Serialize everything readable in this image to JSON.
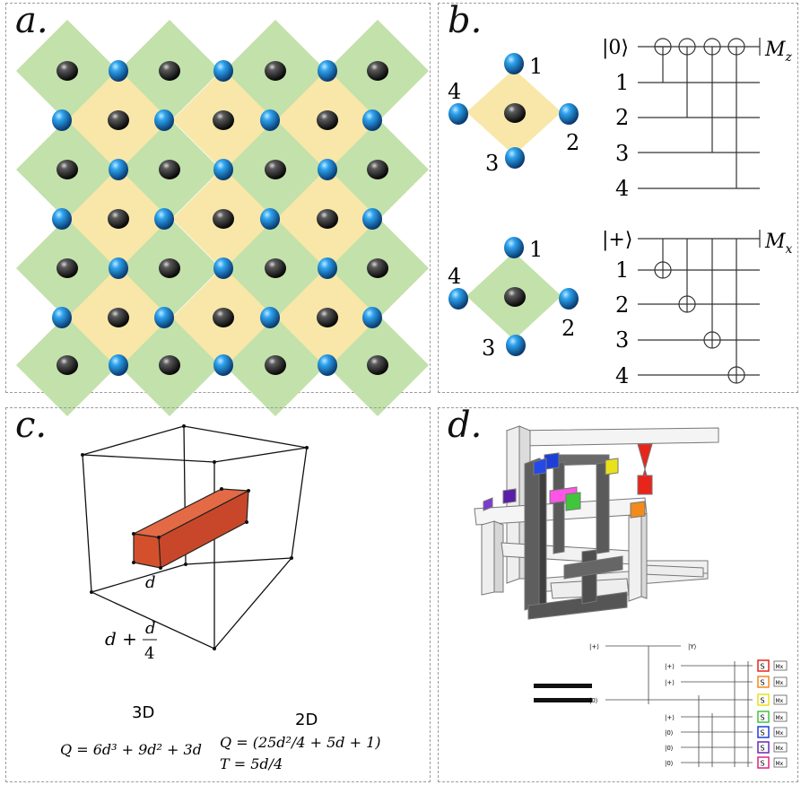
{
  "panel_a": {
    "label": "a."
  },
  "panel_b": {
    "label": "b.",
    "z_stabilizer": {
      "ancilla": "|0⟩",
      "measurement": "M",
      "measurement_sub": "z",
      "qubits": [
        "1",
        "2",
        "3",
        "4"
      ]
    },
    "x_stabilizer": {
      "ancilla": "|+⟩",
      "measurement": "M",
      "measurement_sub": "x",
      "qubits": [
        "1",
        "2",
        "3",
        "4"
      ]
    },
    "plaquette_labels": [
      "1",
      "2",
      "3",
      "4"
    ]
  },
  "panel_c": {
    "label": "c.",
    "box_label_d": "d",
    "cube_label": "d + d/4",
    "cube_label_main": "d +",
    "cube_label_num": "d",
    "cube_label_den": "4",
    "col_3d": "3D",
    "col_2d": "2D",
    "formula_3d": "Q = 6d³ + 9d² + 3d",
    "formula_2d_q": "Q = (25d²/4 + 5d + 1)",
    "formula_2d_t": "T = 5d/4"
  },
  "panel_d": {
    "label": "d.",
    "equals": "=",
    "circuit": {
      "top_in": "|+⟩",
      "top_out": "|Y⟩",
      "inputs": [
        "|+⟩",
        "|+⟩",
        "|0⟩",
        "|+⟩",
        "|0⟩",
        "|0⟩",
        "|0⟩"
      ],
      "gate": "S",
      "meas": "Mx",
      "gate_colors": [
        "#e8251b",
        "#f28a1c",
        "#e9e21a",
        "#3fc63a",
        "#1c3fd8",
        "#6b27b5",
        "#e0227a"
      ]
    }
  },
  "colors": {
    "green_tile": "#c3e1ab",
    "yellow_tile": "#f8e7a8",
    "black_atom": "#1a1a1a",
    "blue_atom": "#1583d6",
    "red_box": "#d4502c"
  }
}
